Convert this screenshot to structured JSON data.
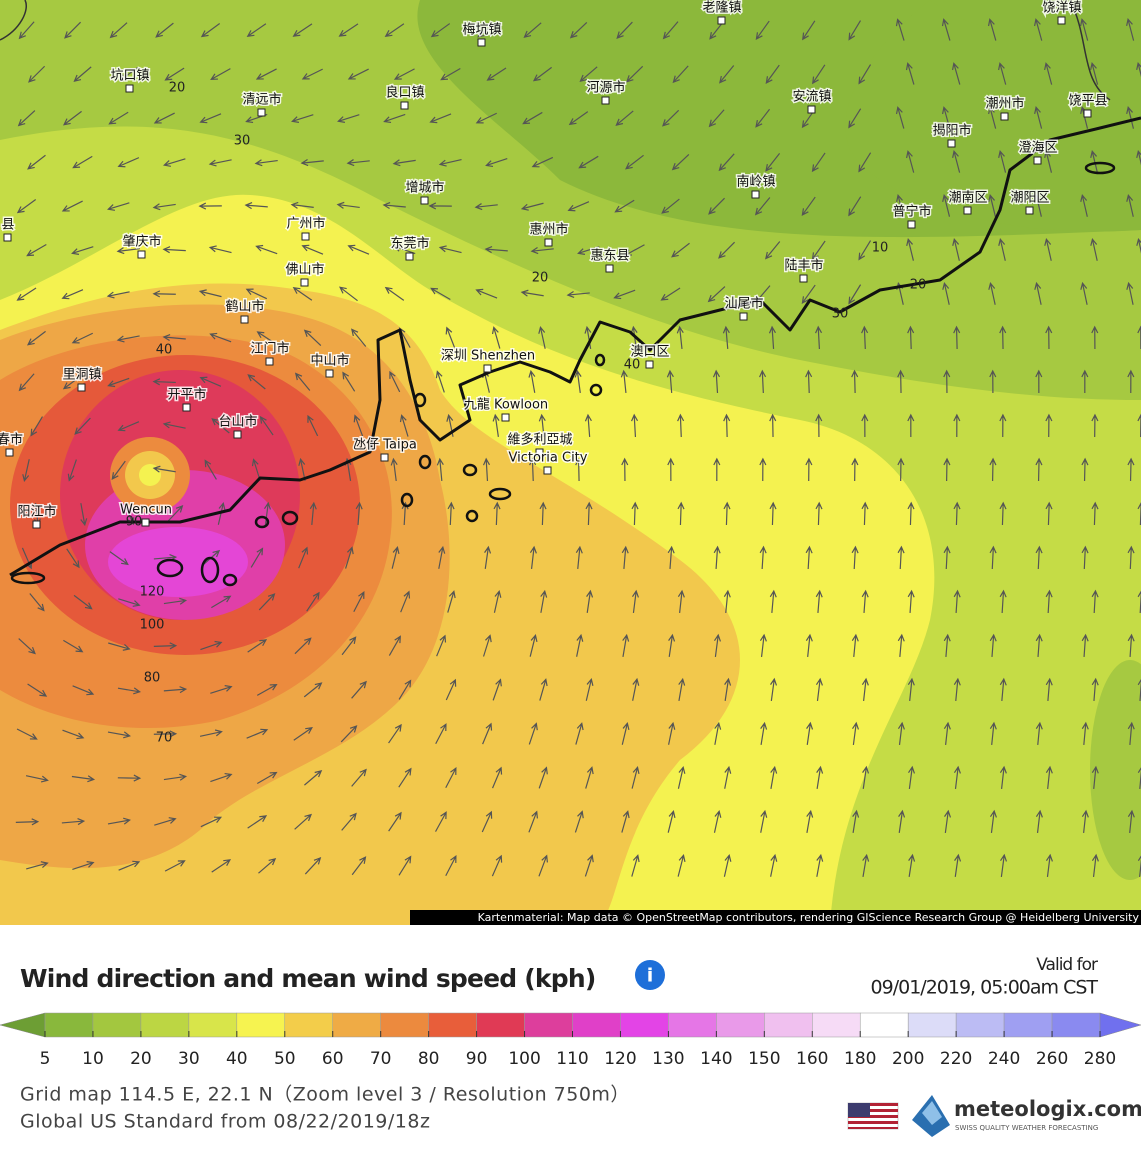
{
  "map": {
    "places": [
      "梅坑镇",
      "老隆镇",
      "饶洋镇",
      "坑口镇",
      "清远市",
      "良口镇",
      "河源市",
      "安流镇",
      "潮州市",
      "饶平县",
      "揭阳市",
      "澄海区",
      "增城市",
      "南岭镇",
      "普宁市",
      "潮南区",
      "潮阳区",
      "广州市",
      "惠州市",
      "东莞市",
      "肇庆市",
      "佛山市",
      "惠东县",
      "陆丰市",
      "鹤山市",
      "汕尾市",
      "江门市",
      "中山市",
      "深圳 Shenzhen",
      "澳口区",
      "里洞镇",
      "开平市",
      "台山市",
      "九龍 Kowloon",
      "氹仔 Taipa",
      "維多利亞城",
      "Victoria City",
      "Wencun",
      "阳江市",
      "县",
      "春市"
    ],
    "contour_labels": [
      "20",
      "30",
      "10",
      "20",
      "20",
      "30",
      "40",
      "40",
      "90",
      "120",
      "100",
      "80",
      "70"
    ],
    "attribution": "Kartenmaterial: Map data © OpenStreetMap contributors, rendering GIScience Research Group @ Heidelberg University"
  },
  "legend": {
    "title": "Wind direction and mean wind speed (kph)",
    "ticks": [
      5,
      10,
      20,
      30,
      40,
      50,
      60,
      70,
      80,
      90,
      100,
      110,
      120,
      130,
      140,
      150,
      160,
      180,
      200,
      220,
      240,
      260,
      280
    ],
    "colors": [
      "#6d9e34",
      "#89b83c",
      "#a3c73f",
      "#bcd643",
      "#d8e54a",
      "#f6f350",
      "#f3cd4a",
      "#efab45",
      "#ec8a3e",
      "#e85e3a",
      "#e03a55",
      "#dd3e9c",
      "#e040c8",
      "#e344e6",
      "#e576e6",
      "#e99ae9",
      "#f0c0ef",
      "#f6dbf6",
      "#ffffff",
      "#dcdcf8",
      "#bcbcf4",
      "#9f9ff2",
      "#8a8af0",
      "#7070ee"
    ]
  },
  "valid_label": "Valid for",
  "valid_time": "09/01/2019, 05:00am CST",
  "info_icon": "i",
  "grid_info": "Grid map 114.5 E, 22.1 N（Zoom level 3 / Resolution 750m）",
  "model_info": "Global US Standard from 08/22/2019/18z",
  "brand": {
    "name": "meteologix.com",
    "tagline": "SWISS QUALITY WEATHER FORECASTING"
  }
}
